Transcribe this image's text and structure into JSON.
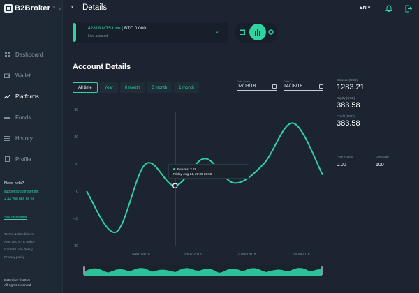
{
  "brand": {
    "name": "B2Broker",
    "tm": "™"
  },
  "topbar": {
    "title": "Details",
    "lang": "EN"
  },
  "sidebar": {
    "items": [
      {
        "label": "Dashboard",
        "icon": "grid-icon"
      },
      {
        "label": "Wallet",
        "icon": "wallet-icon"
      },
      {
        "label": "Platforms",
        "icon": "chart-line-icon",
        "active": true
      },
      {
        "label": "Funds",
        "icon": "funds-icon"
      },
      {
        "label": "History",
        "icon": "list-icon"
      },
      {
        "label": "Profile",
        "icon": "user-icon"
      }
    ],
    "help_title": "Need help?",
    "help_email": "support@b2broker.net",
    "help_phone": "+ 44 208 068 86 56",
    "disclaimer": "See disclaimer",
    "legal_links": [
      "Terms & Conditions",
      "AML and KYC policy",
      "Content Use Policy",
      "Privacy policy"
    ],
    "copyright_1": "B2Broker © 2019",
    "copyright_2": "All rights reserved"
  },
  "account": {
    "number": "42819 MT5 Live",
    "separator": "|",
    "balance": "BTC 0.000",
    "subtitle": "Live account"
  },
  "section": {
    "title": "Account Details",
    "filters": [
      "All time",
      "Year",
      "6 month",
      "3 month",
      "1 month"
    ],
    "date_from_label": "Date From",
    "date_from": "02/08/18",
    "date_to_label": "Date To",
    "date_to": "14/08/18"
  },
  "stats": {
    "balance_label": "Balance (USD)",
    "balance": "1283.21",
    "equity_label": "Equity (USD)",
    "equity": "383.58",
    "credit_label": "Credit (USD)",
    "credit": "383.58",
    "free_funds_label": "Free Funds",
    "free_funds": "0.00",
    "leverage_label": "Leverage",
    "leverage": "100"
  },
  "tooltip": {
    "line1": "Returns: 2.19",
    "line2": "Friday, Aug 14, 20:00-23:59"
  },
  "colors": {
    "accent": "#2fd3a4",
    "bg": "#1b2430",
    "sidebar": "#1e2935"
  },
  "chart_data": {
    "type": "line",
    "y_ticks": [
      "30",
      "20",
      "10",
      "0",
      "-10",
      "-20"
    ],
    "ylim": [
      -20,
      30
    ],
    "x_ticks": [
      "04/07/2018",
      "18/07/2018",
      "01/08/2018",
      "15/08/2018"
    ],
    "x": [
      "27/06/2018",
      "04/07/2018",
      "11/07/2018",
      "18/07/2018",
      "25/07/2018",
      "01/08/2018",
      "08/08/2018",
      "15/08/2018",
      "22/08/2018"
    ],
    "series": [
      {
        "values": [
          0,
          -15,
          10,
          2,
          12,
          3,
          10,
          25,
          6
        ]
      }
    ],
    "highlight_index": 3,
    "grid": false
  }
}
